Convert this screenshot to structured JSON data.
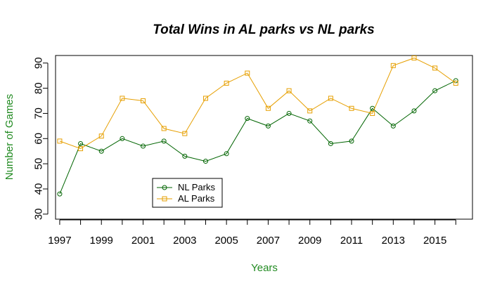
{
  "chart_data": {
    "type": "line",
    "title": "Total Wins in AL parks vs NL parks",
    "xlabel": "Years",
    "ylabel": "Number of Games",
    "x": [
      1997,
      1998,
      1999,
      2000,
      2001,
      2002,
      2003,
      2004,
      2005,
      2006,
      2007,
      2008,
      2009,
      2010,
      2011,
      2012,
      2013,
      2014,
      2015,
      2016
    ],
    "x_tick_labels": [
      "1997",
      "1999",
      "2001",
      "2003",
      "2005",
      "2007",
      "2009",
      "2011",
      "2013",
      "2015"
    ],
    "y_tick_labels": [
      "30",
      "40",
      "50",
      "60",
      "70",
      "80",
      "90"
    ],
    "xlim": [
      1996.8,
      2016.8
    ],
    "ylim": [
      28,
      93
    ],
    "grid": false,
    "legend_position": "bottom-left",
    "series": [
      {
        "name": "NL Parks",
        "color": "#006400",
        "marker": "circle",
        "values": [
          38,
          58,
          55,
          60,
          57,
          59,
          53,
          51,
          54,
          68,
          65,
          70,
          67,
          58,
          59,
          72,
          65,
          71,
          79,
          83
        ]
      },
      {
        "name": "AL Parks",
        "color": "#E69F00",
        "marker": "square",
        "values": [
          59,
          56,
          61,
          76,
          75,
          64,
          62,
          76,
          82,
          86,
          72,
          79,
          71,
          76,
          72,
          70,
          89,
          92,
          88,
          82
        ]
      }
    ],
    "colors": {
      "title": "#000000",
      "axis_titles": "#228B22",
      "axes": "#000000"
    }
  }
}
